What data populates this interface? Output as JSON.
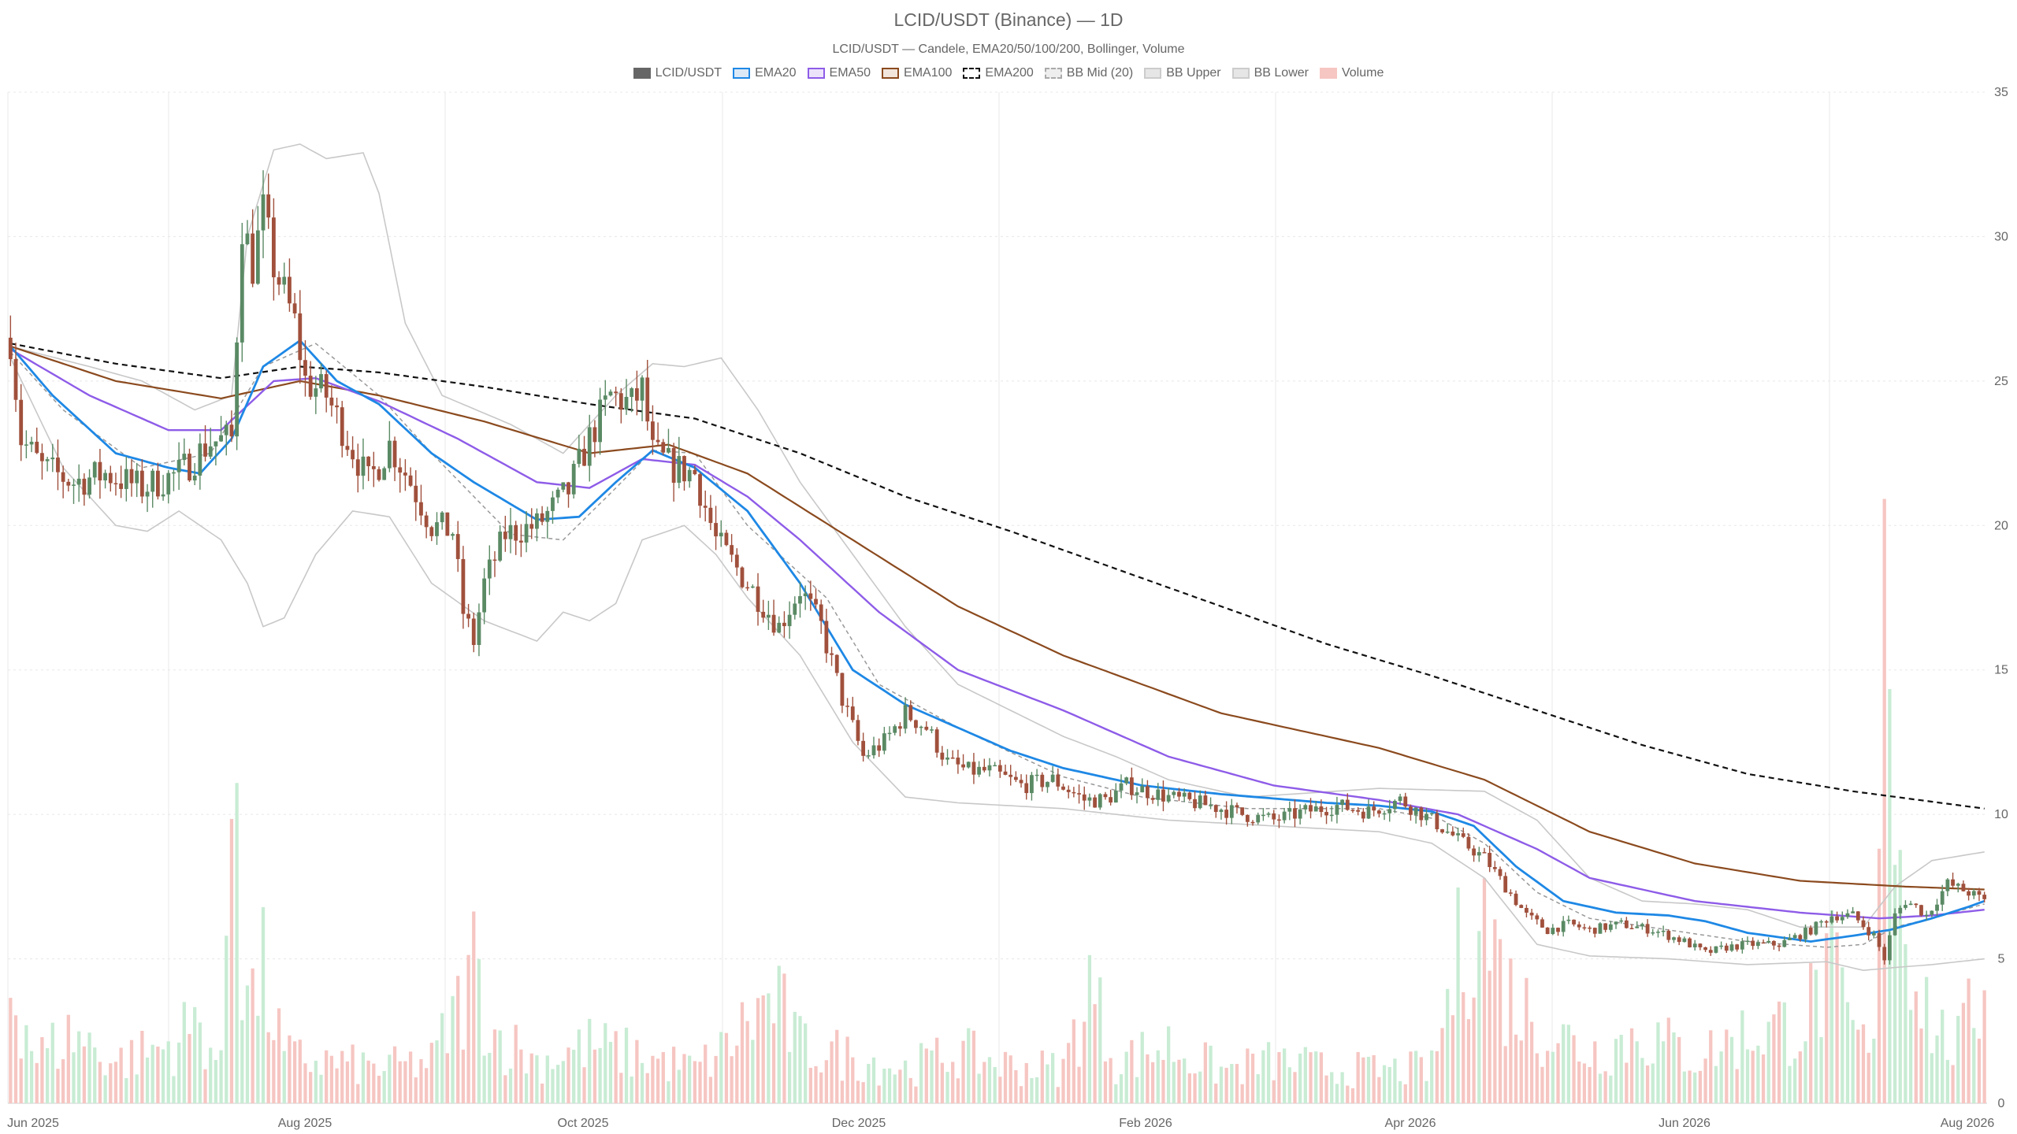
{
  "chart_data": {
    "type": "candlestick",
    "title": "LCID/USDT (Binance) — 1D",
    "subtitle": "LCID/USDT — Candele, EMA20/50/100/200, Bollinger, Volume",
    "legend": [
      {
        "label": "LCID/USDT",
        "color": "#666666",
        "fill": "#666666",
        "dashed": false
      },
      {
        "label": "EMA20",
        "color": "#1e88e5",
        "fill": "#dbe9f7",
        "dashed": false
      },
      {
        "label": "EMA50",
        "color": "#8e5ce8",
        "fill": "#ece3fb",
        "dashed": false
      },
      {
        "label": "EMA100",
        "color": "#8b4a1e",
        "fill": "#f1e5dc",
        "dashed": false
      },
      {
        "label": "EMA200",
        "color": "#111111",
        "fill": "#ffffff",
        "dashed": true
      },
      {
        "label": "BB Mid (20)",
        "color": "#aaaaaa",
        "fill": "#eeeeee",
        "dashed": true
      },
      {
        "label": "BB Upper",
        "color": "#cccccc",
        "fill": "#e6e6e6",
        "dashed": false
      },
      {
        "label": "BB Lower",
        "color": "#cccccc",
        "fill": "#e6e6e6",
        "dashed": false
      },
      {
        "label": "Volume",
        "color": "#f6c6c2",
        "fill": "#f6c6c2",
        "dashed": false
      }
    ],
    "x_ticks": [
      "Jun 2025",
      "Aug 2025",
      "Oct 2025",
      "Dec 2025",
      "Feb 2026",
      "Apr 2026",
      "Jun 2026",
      "Aug 2026"
    ],
    "y_ticks": [
      0,
      5,
      10,
      15,
      20,
      25,
      30,
      35
    ],
    "ylim": [
      0,
      35
    ],
    "colors": {
      "up": "#5a8a64",
      "down": "#a0503c",
      "vol_up": "#c8ecd4",
      "vol_down": "#f6c6c2",
      "grid": "#e8e8e8"
    },
    "ema_anchors": {
      "ema20": [
        [
          0,
          26.2
        ],
        [
          8,
          24.5
        ],
        [
          20,
          22.5
        ],
        [
          30,
          22
        ],
        [
          36,
          21.8
        ],
        [
          42,
          23
        ],
        [
          48,
          25.5
        ],
        [
          55,
          26.4
        ],
        [
          62,
          25
        ],
        [
          70,
          24.2
        ],
        [
          80,
          22.5
        ],
        [
          88,
          21.5
        ],
        [
          100,
          20.2
        ],
        [
          108,
          20.3
        ],
        [
          115,
          21.5
        ],
        [
          122,
          22.6
        ],
        [
          130,
          22
        ],
        [
          140,
          20.5
        ],
        [
          150,
          18
        ],
        [
          160,
          15
        ],
        [
          170,
          13.8
        ],
        [
          180,
          13
        ],
        [
          190,
          12.2
        ],
        [
          200,
          11.6
        ],
        [
          215,
          11
        ],
        [
          230,
          10.7
        ],
        [
          250,
          10.4
        ],
        [
          260,
          10.3
        ],
        [
          270,
          10.1
        ],
        [
          278,
          9.6
        ],
        [
          286,
          8.2
        ],
        [
          295,
          7
        ],
        [
          305,
          6.6
        ],
        [
          315,
          6.5
        ],
        [
          322,
          6.3
        ],
        [
          330,
          5.9
        ],
        [
          342,
          5.6
        ],
        [
          350,
          5.8
        ],
        [
          357,
          6
        ],
        [
          365,
          6.4
        ],
        [
          372,
          6.8
        ],
        [
          375,
          7
        ]
      ],
      "ema50": [
        [
          0,
          26.1
        ],
        [
          15,
          24.5
        ],
        [
          30,
          23.3
        ],
        [
          40,
          23.3
        ],
        [
          50,
          25
        ],
        [
          58,
          25.1
        ],
        [
          70,
          24.3
        ],
        [
          85,
          23
        ],
        [
          100,
          21.5
        ],
        [
          110,
          21.3
        ],
        [
          120,
          22.3
        ],
        [
          130,
          22.1
        ],
        [
          140,
          21
        ],
        [
          150,
          19.5
        ],
        [
          165,
          17
        ],
        [
          180,
          15
        ],
        [
          200,
          13.6
        ],
        [
          220,
          12
        ],
        [
          240,
          11
        ],
        [
          260,
          10.5
        ],
        [
          275,
          10
        ],
        [
          290,
          8.8
        ],
        [
          300,
          7.8
        ],
        [
          320,
          7
        ],
        [
          340,
          6.6
        ],
        [
          355,
          6.4
        ],
        [
          365,
          6.5
        ],
        [
          375,
          6.7
        ]
      ],
      "ema100": [
        [
          0,
          26.2
        ],
        [
          20,
          25
        ],
        [
          40,
          24.4
        ],
        [
          55,
          25
        ],
        [
          70,
          24.5
        ],
        [
          90,
          23.6
        ],
        [
          110,
          22.5
        ],
        [
          125,
          22.8
        ],
        [
          140,
          21.8
        ],
        [
          160,
          19.5
        ],
        [
          180,
          17.2
        ],
        [
          200,
          15.5
        ],
        [
          230,
          13.5
        ],
        [
          260,
          12.3
        ],
        [
          280,
          11.2
        ],
        [
          300,
          9.4
        ],
        [
          320,
          8.3
        ],
        [
          340,
          7.7
        ],
        [
          360,
          7.5
        ],
        [
          375,
          7.4
        ]
      ],
      "ema200": [
        [
          0,
          26.3
        ],
        [
          20,
          25.6
        ],
        [
          40,
          25.1
        ],
        [
          55,
          25.5
        ],
        [
          70,
          25.3
        ],
        [
          90,
          24.8
        ],
        [
          110,
          24.2
        ],
        [
          130,
          23.7
        ],
        [
          150,
          22.5
        ],
        [
          170,
          21
        ],
        [
          190,
          19.8
        ],
        [
          210,
          18.5
        ],
        [
          230,
          17.2
        ],
        [
          250,
          15.9
        ],
        [
          270,
          14.8
        ],
        [
          290,
          13.6
        ],
        [
          310,
          12.4
        ],
        [
          330,
          11.4
        ],
        [
          350,
          10.8
        ],
        [
          375,
          10.2
        ]
      ],
      "bb_mid": [
        [
          0,
          26
        ],
        [
          10,
          24
        ],
        [
          25,
          22
        ],
        [
          38,
          22.5
        ],
        [
          48,
          25.5
        ],
        [
          58,
          26.3
        ],
        [
          70,
          24.5
        ],
        [
          80,
          22.5
        ],
        [
          95,
          19.7
        ],
        [
          105,
          19.5
        ],
        [
          115,
          21.3
        ],
        [
          122,
          22.6
        ],
        [
          130,
          22.5
        ],
        [
          140,
          20
        ],
        [
          155,
          17.5
        ],
        [
          165,
          14.5
        ],
        [
          180,
          13
        ],
        [
          200,
          11.3
        ],
        [
          215,
          10.6
        ],
        [
          235,
          10.2
        ],
        [
          260,
          10.2
        ],
        [
          272,
          9.8
        ],
        [
          280,
          9
        ],
        [
          290,
          7.3
        ],
        [
          300,
          6.4
        ],
        [
          315,
          6
        ],
        [
          330,
          5.6
        ],
        [
          345,
          5.4
        ],
        [
          352,
          5.5
        ],
        [
          358,
          6.1
        ],
        [
          365,
          6.4
        ],
        [
          375,
          6.9
        ]
      ],
      "bb_upper": [
        [
          0,
          26.2
        ],
        [
          15,
          25.5
        ],
        [
          25,
          25
        ],
        [
          35,
          24
        ],
        [
          42,
          24.5
        ],
        [
          45,
          30
        ],
        [
          50,
          33
        ],
        [
          55,
          33.2
        ],
        [
          60,
          32.7
        ],
        [
          67,
          32.9
        ],
        [
          70,
          31.5
        ],
        [
          75,
          27
        ],
        [
          82,
          24.5
        ],
        [
          95,
          23.5
        ],
        [
          105,
          22.5
        ],
        [
          115,
          24.5
        ],
        [
          122,
          25.6
        ],
        [
          128,
          25.5
        ],
        [
          135,
          25.8
        ],
        [
          142,
          24
        ],
        [
          150,
          21.5
        ],
        [
          160,
          19
        ],
        [
          170,
          16.5
        ],
        [
          180,
          14.5
        ],
        [
          200,
          12.7
        ],
        [
          210,
          12
        ],
        [
          220,
          11.2
        ],
        [
          235,
          10.6
        ],
        [
          260,
          10.9
        ],
        [
          280,
          10.8
        ],
        [
          290,
          9.8
        ],
        [
          300,
          7.8
        ],
        [
          310,
          7
        ],
        [
          320,
          6.9
        ],
        [
          330,
          6.7
        ],
        [
          340,
          6.1
        ],
        [
          352,
          6.1
        ],
        [
          358,
          7.5
        ],
        [
          365,
          8.4
        ],
        [
          375,
          8.7
        ]
      ],
      "bb_lower": [
        [
          0,
          25.8
        ],
        [
          10,
          22
        ],
        [
          20,
          20
        ],
        [
          26,
          19.8
        ],
        [
          32,
          20.5
        ],
        [
          40,
          19.5
        ],
        [
          45,
          18
        ],
        [
          48,
          16.5
        ],
        [
          52,
          16.8
        ],
        [
          58,
          19
        ],
        [
          65,
          20.5
        ],
        [
          72,
          20.3
        ],
        [
          80,
          18
        ],
        [
          90,
          16.7
        ],
        [
          100,
          16
        ],
        [
          105,
          17
        ],
        [
          110,
          16.7
        ],
        [
          115,
          17.3
        ],
        [
          120,
          19.5
        ],
        [
          128,
          20
        ],
        [
          134,
          19
        ],
        [
          140,
          17.5
        ],
        [
          150,
          15.5
        ],
        [
          160,
          12.5
        ],
        [
          170,
          10.6
        ],
        [
          180,
          10.4
        ],
        [
          190,
          10.3
        ],
        [
          200,
          10.2
        ],
        [
          220,
          9.8
        ],
        [
          240,
          9.6
        ],
        [
          260,
          9.4
        ],
        [
          270,
          9
        ],
        [
          280,
          7.8
        ],
        [
          290,
          5.5
        ],
        [
          300,
          5.1
        ],
        [
          315,
          5
        ],
        [
          330,
          4.8
        ],
        [
          345,
          4.9
        ],
        [
          352,
          4.6
        ],
        [
          358,
          4.7
        ],
        [
          365,
          4.8
        ],
        [
          375,
          5
        ]
      ]
    },
    "candle_anchors": [
      [
        0,
        26.5
      ],
      [
        2,
        23
      ],
      [
        6,
        22
      ],
      [
        12,
        21.5
      ],
      [
        18,
        21.8
      ],
      [
        25,
        21.3
      ],
      [
        32,
        21.8
      ],
      [
        38,
        22.9
      ],
      [
        42,
        23
      ],
      [
        44,
        30.5
      ],
      [
        46,
        29
      ],
      [
        48,
        30.8
      ],
      [
        50,
        29
      ],
      [
        54,
        27
      ],
      [
        56,
        25
      ],
      [
        60,
        24.5
      ],
      [
        64,
        23
      ],
      [
        68,
        21.5
      ],
      [
        72,
        22.8
      ],
      [
        76,
        21.5
      ],
      [
        80,
        20
      ],
      [
        84,
        19.8
      ],
      [
        86,
        17
      ],
      [
        88,
        16
      ],
      [
        90,
        18
      ],
      [
        94,
        19.7
      ],
      [
        100,
        20
      ],
      [
        106,
        21.2
      ],
      [
        110,
        23
      ],
      [
        114,
        24.5
      ],
      [
        118,
        24.2
      ],
      [
        120,
        24.7
      ],
      [
        122,
        22.5
      ],
      [
        126,
        22
      ],
      [
        130,
        21.8
      ],
      [
        134,
        19.5
      ],
      [
        138,
        18.5
      ],
      [
        142,
        17.5
      ],
      [
        146,
        16.5
      ],
      [
        150,
        17.8
      ],
      [
        154,
        16.5
      ],
      [
        158,
        14
      ],
      [
        162,
        12
      ],
      [
        166,
        12.5
      ],
      [
        170,
        13.5
      ],
      [
        174,
        13
      ],
      [
        178,
        11.8
      ],
      [
        182,
        11.5
      ],
      [
        186,
        11.5
      ],
      [
        192,
        11
      ],
      [
        198,
        11.2
      ],
      [
        204,
        10.5
      ],
      [
        208,
        10.5
      ],
      [
        212,
        11
      ],
      [
        216,
        10.8
      ],
      [
        222,
        10.5
      ],
      [
        228,
        10.3
      ],
      [
        234,
        10
      ],
      [
        240,
        9.8
      ],
      [
        246,
        10.1
      ],
      [
        252,
        10.3
      ],
      [
        258,
        10.1
      ],
      [
        264,
        10.5
      ],
      [
        270,
        9.8
      ],
      [
        276,
        9
      ],
      [
        280,
        8.5
      ],
      [
        284,
        7.5
      ],
      [
        288,
        6.5
      ],
      [
        292,
        6
      ],
      [
        296,
        6.2
      ],
      [
        300,
        6
      ],
      [
        306,
        6.2
      ],
      [
        312,
        6
      ],
      [
        318,
        5.6
      ],
      [
        322,
        5.2
      ],
      [
        326,
        5.4
      ],
      [
        330,
        5.5
      ],
      [
        336,
        5.5
      ],
      [
        342,
        6
      ],
      [
        346,
        6.5
      ],
      [
        350,
        6.5
      ],
      [
        354,
        5.8
      ],
      [
        356,
        5
      ],
      [
        358,
        6.5
      ],
      [
        360,
        7
      ],
      [
        362,
        6.8
      ],
      [
        364,
        6.5
      ],
      [
        368,
        7.6
      ],
      [
        372,
        7.3
      ],
      [
        375,
        7.0
      ]
    ],
    "volume_anchors": [
      [
        0,
        5.5
      ],
      [
        5,
        2
      ],
      [
        12,
        3
      ],
      [
        20,
        1.8
      ],
      [
        30,
        2.5
      ],
      [
        36,
        3.5
      ],
      [
        40,
        1.5
      ],
      [
        43,
        20.5
      ],
      [
        44,
        6.5
      ],
      [
        46,
        4.5
      ],
      [
        48,
        5.5
      ],
      [
        52,
        2
      ],
      [
        60,
        1.8
      ],
      [
        70,
        1.5
      ],
      [
        80,
        1.8
      ],
      [
        86,
        4.5
      ],
      [
        88,
        6
      ],
      [
        92,
        3
      ],
      [
        100,
        1.8
      ],
      [
        110,
        2.5
      ],
      [
        120,
        2
      ],
      [
        130,
        1.5
      ],
      [
        135,
        2.2
      ],
      [
        140,
        3.5
      ],
      [
        145,
        4.5
      ],
      [
        150,
        2.5
      ],
      [
        160,
        2
      ],
      [
        170,
        1.5
      ],
      [
        180,
        2.2
      ],
      [
        190,
        1.6
      ],
      [
        200,
        1.5
      ],
      [
        205,
        5
      ],
      [
        210,
        1.8
      ],
      [
        220,
        2.5
      ],
      [
        230,
        1.4
      ],
      [
        240,
        1.8
      ],
      [
        250,
        1.5
      ],
      [
        260,
        1.4
      ],
      [
        270,
        1.5
      ],
      [
        276,
        7
      ],
      [
        278,
        9
      ],
      [
        280,
        8
      ],
      [
        284,
        5
      ],
      [
        290,
        3.5
      ],
      [
        300,
        2.2
      ],
      [
        310,
        3
      ],
      [
        320,
        2
      ],
      [
        330,
        3
      ],
      [
        340,
        3.5
      ],
      [
        346,
        5.5
      ],
      [
        350,
        3
      ],
      [
        354,
        2
      ],
      [
        356,
        34
      ],
      [
        358,
        12.5
      ],
      [
        360,
        9
      ],
      [
        363,
        5
      ],
      [
        366,
        3
      ],
      [
        370,
        2.5
      ],
      [
        375,
        5
      ]
    ],
    "volume_scale_max": 35,
    "n_days": 376,
    "x_tick_days": [
      6,
      67,
      128,
      189,
      251,
      310,
      371,
      432
    ]
  }
}
